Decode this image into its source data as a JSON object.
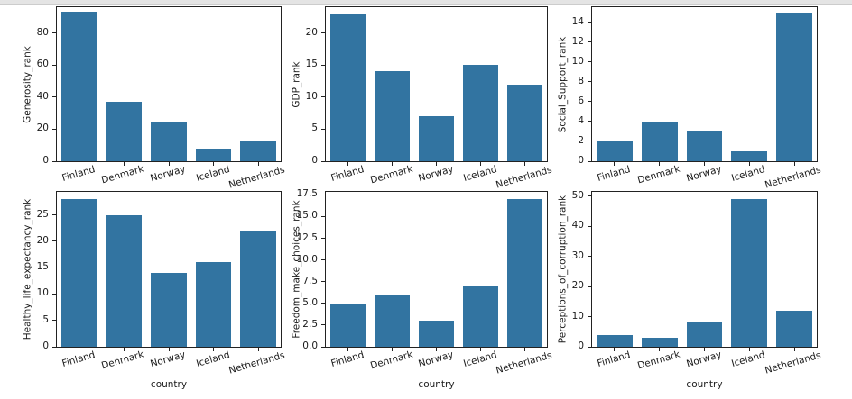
{
  "figure": {
    "bar_color": "#3274a1",
    "spine_color": "#222222",
    "text_color": "#1a1a1a",
    "top_strip_color": "#e4e4e4",
    "layout": "2 rows x 3 columns of bar subplots"
  },
  "chart_data": [
    {
      "type": "bar",
      "title": "",
      "ylabel": "Generosity_rank",
      "xlabel": "",
      "categories": [
        "Finland",
        "Denmark",
        "Norway",
        "Iceland",
        "Netherlands"
      ],
      "values": [
        93,
        37,
        24,
        8,
        13
      ],
      "yticks": [
        "0",
        "20",
        "40",
        "60",
        "80"
      ],
      "ylim": [
        0,
        96
      ],
      "grid": false,
      "legend": "none"
    },
    {
      "type": "bar",
      "title": "",
      "ylabel": "GDP_rank",
      "xlabel": "",
      "categories": [
        "Finland",
        "Denmark",
        "Norway",
        "Iceland",
        "Netherlands"
      ],
      "values": [
        23,
        14,
        7,
        15,
        12
      ],
      "yticks": [
        "0",
        "5",
        "10",
        "15",
        "20"
      ],
      "ylim": [
        0,
        24
      ],
      "grid": false,
      "legend": "none"
    },
    {
      "type": "bar",
      "title": "",
      "ylabel": "Social_Support_rank",
      "xlabel": "",
      "categories": [
        "Finland",
        "Denmark",
        "Norway",
        "Iceland",
        "Netherlands"
      ],
      "values": [
        2,
        4,
        3,
        1,
        15
      ],
      "yticks": [
        "0",
        "2",
        "4",
        "6",
        "8",
        "10",
        "12",
        "14"
      ],
      "ylim": [
        0,
        15.5
      ],
      "grid": false,
      "legend": "none"
    },
    {
      "type": "bar",
      "title": "",
      "ylabel": "Healthy_life_expectancy_rank",
      "xlabel": "country",
      "categories": [
        "Finland",
        "Denmark",
        "Norway",
        "Iceland",
        "Netherlands"
      ],
      "values": [
        28,
        25,
        14,
        16,
        22
      ],
      "yticks": [
        "0",
        "5",
        "10",
        "15",
        "20",
        "25"
      ],
      "ylim": [
        0,
        29.4
      ],
      "grid": false,
      "legend": "none"
    },
    {
      "type": "bar",
      "title": "",
      "ylabel": "Freedom_make_choices_rank",
      "xlabel": "country",
      "categories": [
        "Finland",
        "Denmark",
        "Norway",
        "Iceland",
        "Netherlands"
      ],
      "values": [
        5,
        6,
        3,
        7,
        17
      ],
      "yticks": [
        "0.0",
        "2.5",
        "5.0",
        "7.5",
        "10.0",
        "12.5",
        "15.0",
        "17.5"
      ],
      "ylim": [
        0,
        17.85
      ],
      "grid": false,
      "legend": "none"
    },
    {
      "type": "bar",
      "title": "",
      "ylabel": "Perceptions_of_corruption_rank",
      "xlabel": "country",
      "categories": [
        "Finland",
        "Denmark",
        "Norway",
        "Iceland",
        "Netherlands"
      ],
      "values": [
        4,
        3,
        8,
        49,
        12
      ],
      "yticks": [
        "0",
        "10",
        "20",
        "30",
        "40",
        "50"
      ],
      "ylim": [
        0,
        51.45
      ],
      "grid": false,
      "legend": "none"
    }
  ]
}
